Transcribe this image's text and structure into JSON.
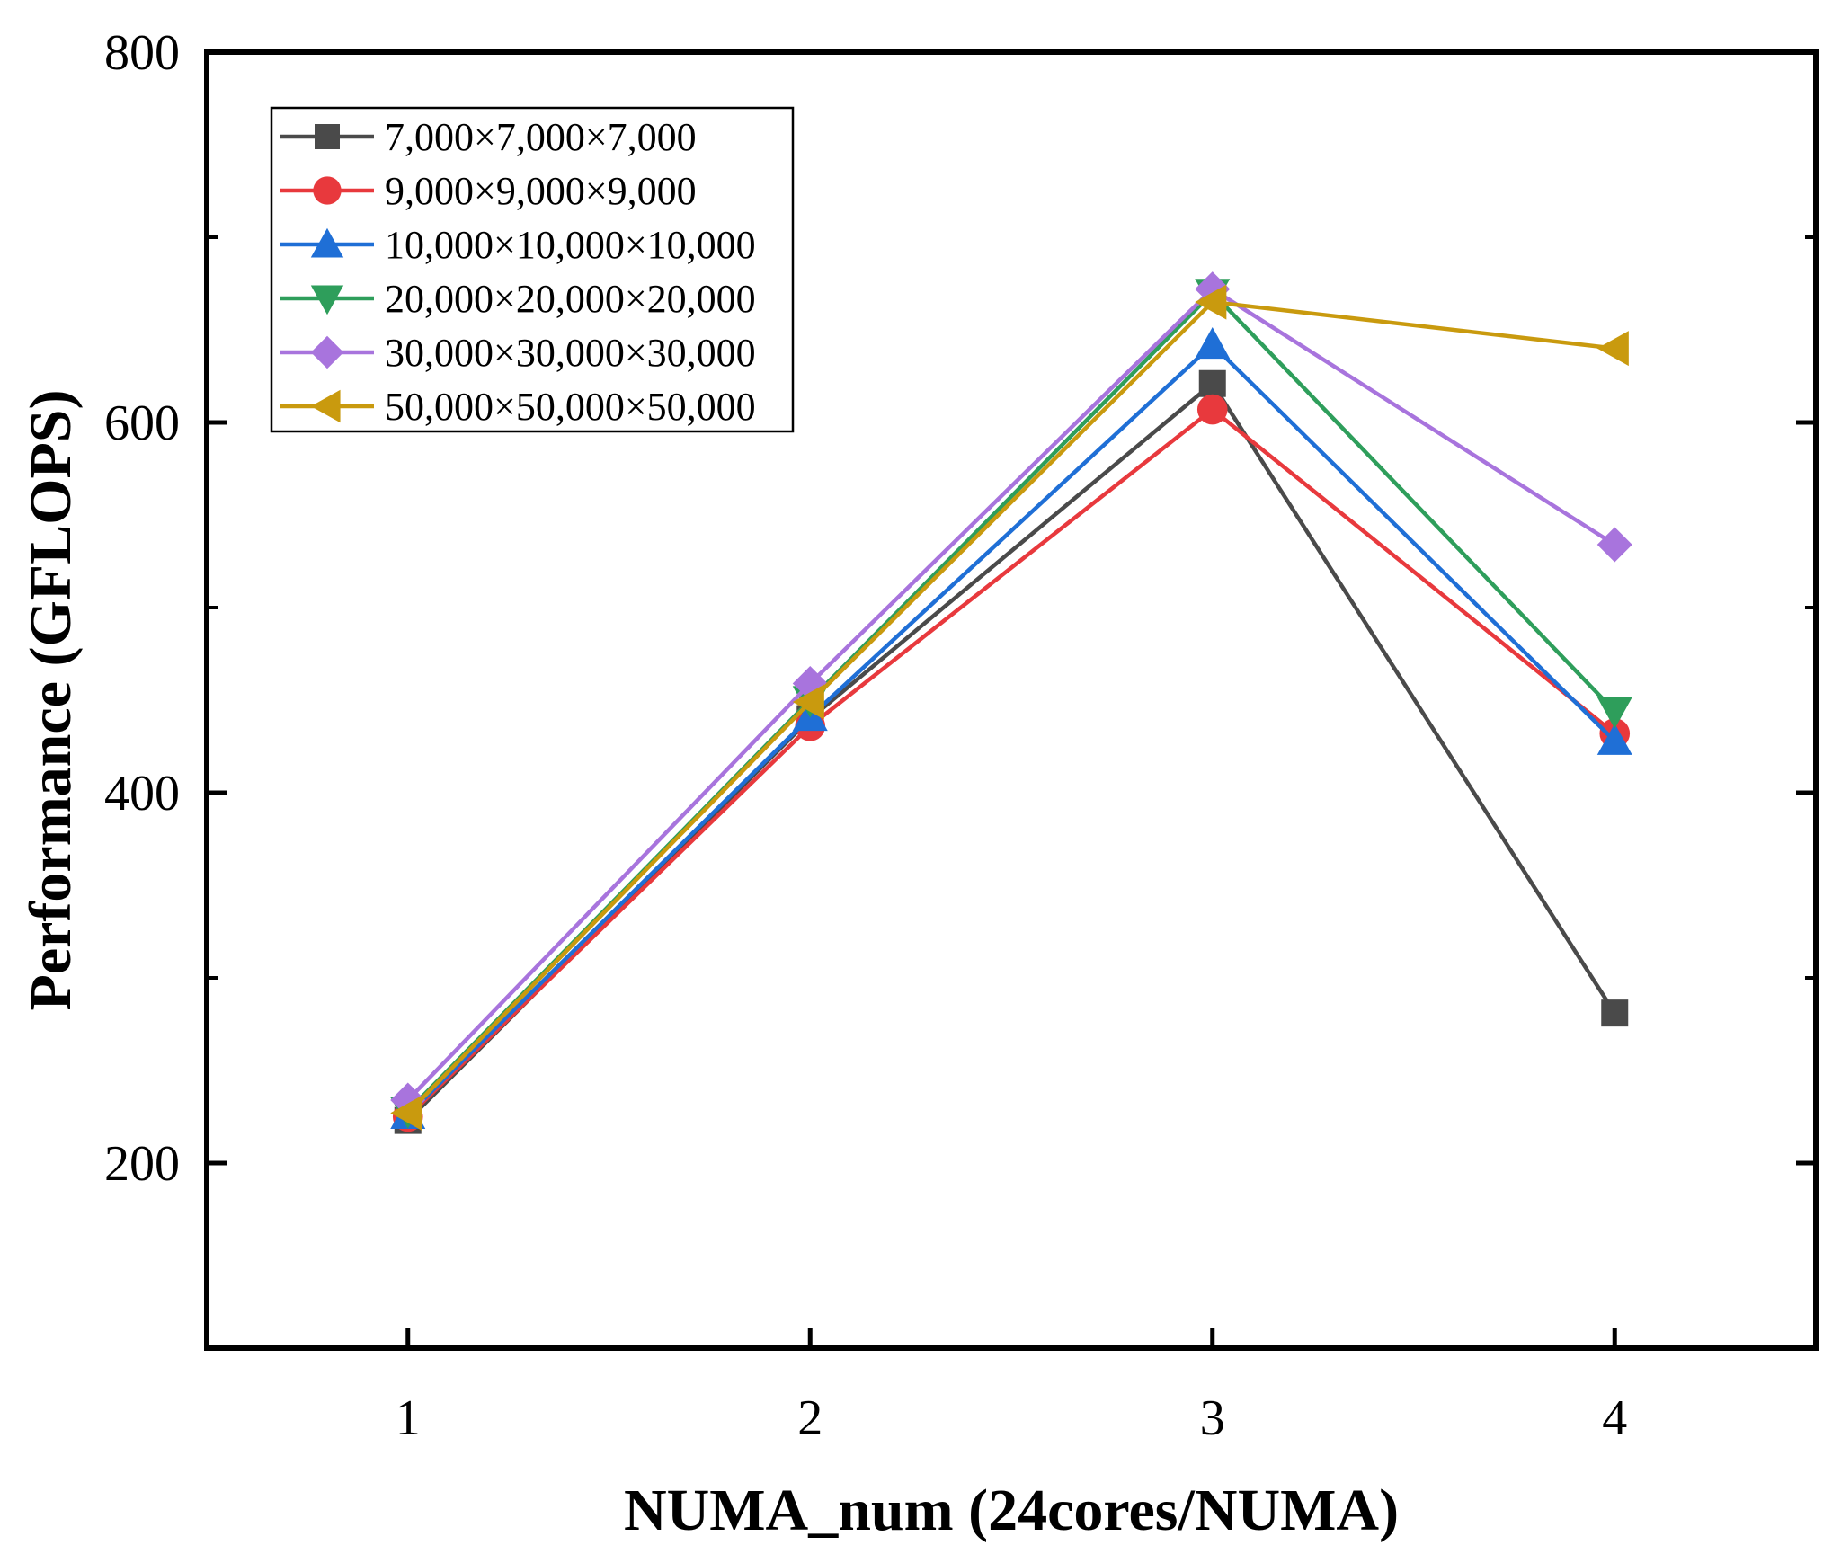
{
  "chart_data": {
    "type": "line",
    "title": "",
    "xlabel": "NUMA_num (24cores/NUMA)",
    "ylabel": "Performance (GFLOPS)",
    "xlim": [
      0.5,
      4.5
    ],
    "ylim": [
      100,
      800
    ],
    "x": [
      1,
      2,
      3,
      4
    ],
    "x_ticks": [
      1,
      2,
      3,
      4
    ],
    "y_ticks": [
      200,
      400,
      600,
      800
    ],
    "y_minor_ticks": [
      300,
      500,
      700
    ],
    "legend_position": "top-left",
    "grid": false,
    "series": [
      {
        "name": "7,000×7,000×7,000",
        "color": "#4a4a4a",
        "marker": "square",
        "values": [
          223,
          440,
          621,
          281
        ]
      },
      {
        "name": "9,000×9,000×9,000",
        "color": "#e8393d",
        "marker": "circle",
        "values": [
          225,
          436,
          607,
          432
        ]
      },
      {
        "name": "10,000×10,000×10,000",
        "color": "#1f6fd6",
        "marker": "triangle-up",
        "values": [
          226,
          441,
          642,
          428
        ]
      },
      {
        "name": "20,000×20,000×20,000",
        "color": "#2e9e5b",
        "marker": "triangle-down",
        "values": [
          228,
          450,
          670,
          444
        ]
      },
      {
        "name": "30,000×30,000×30,000",
        "color": "#a874dd",
        "marker": "diamond",
        "values": [
          234,
          459,
          672,
          534
        ]
      },
      {
        "name": "50,000×50,000×50,000",
        "color": "#c99a0e",
        "marker": "triangle-left",
        "values": [
          227,
          449,
          665,
          640
        ]
      }
    ]
  }
}
